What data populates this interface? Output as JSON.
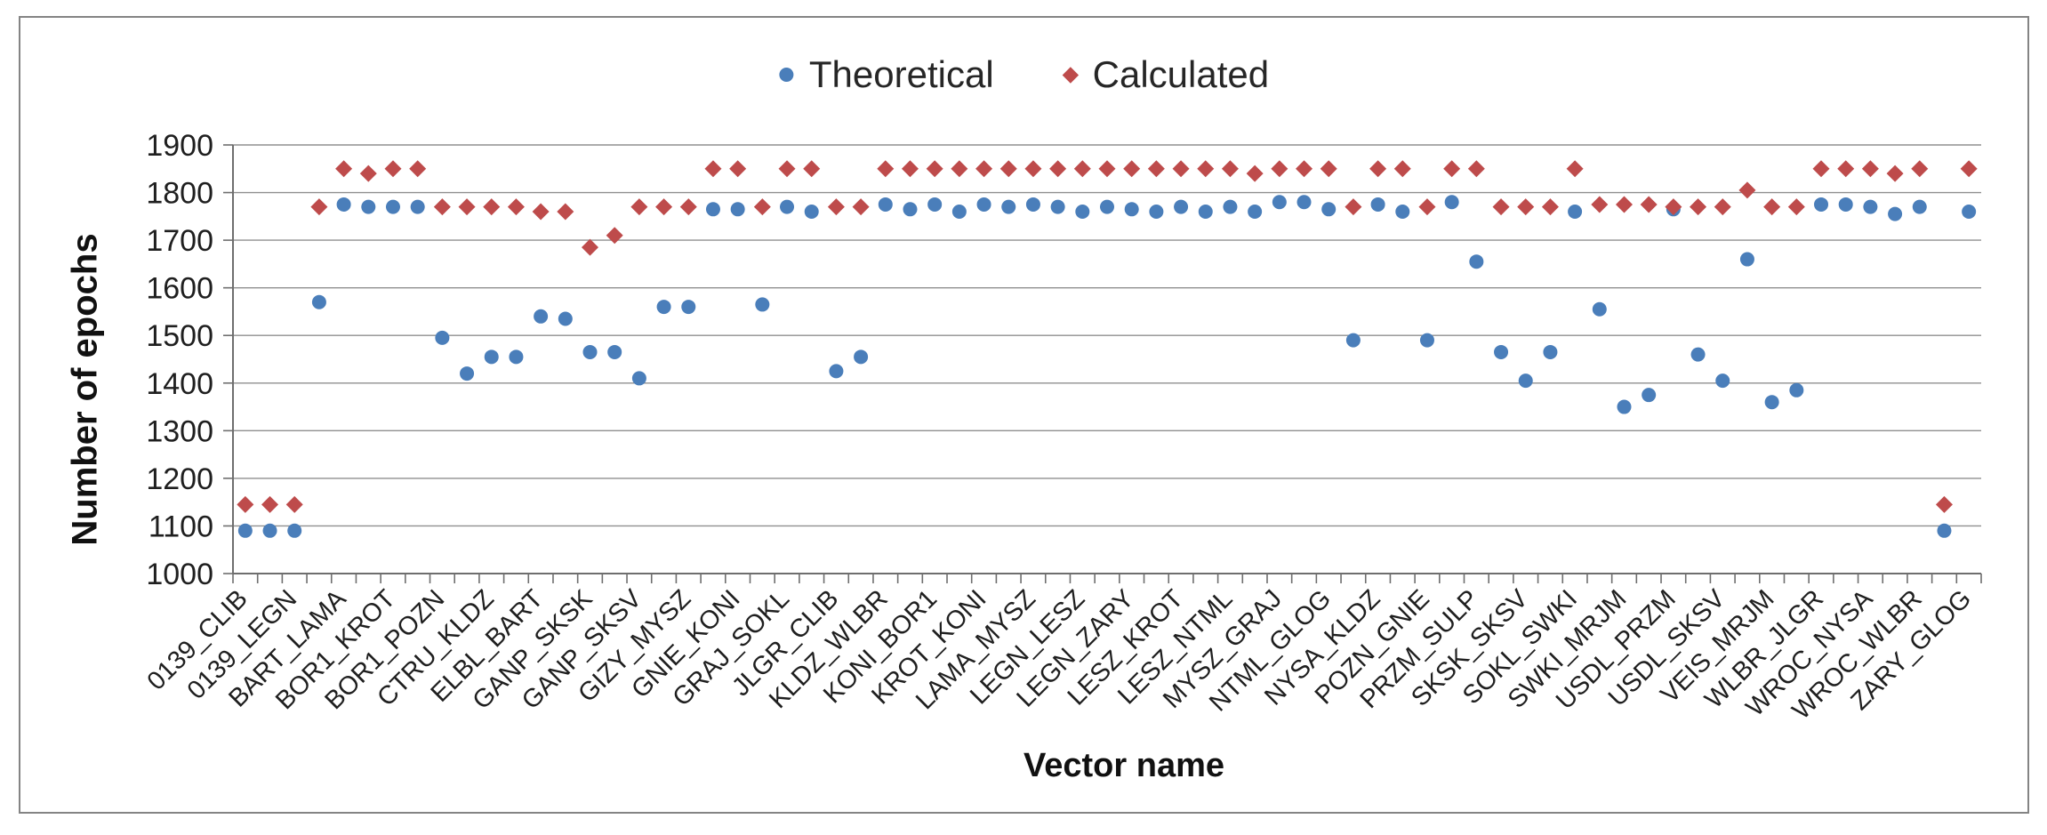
{
  "chart_data": {
    "type": "scatter",
    "title": "",
    "x_axis_title": "Vector name",
    "y_axis_title": "Number of epochs",
    "ylim": [
      1000,
      1900
    ],
    "ytick_step": 100,
    "ytick_labels": [
      "1000",
      "1100",
      "1200",
      "1300",
      "1400",
      "1500",
      "1600",
      "1700",
      "1800",
      "1900"
    ],
    "grid": true,
    "legend_position": "top-center",
    "label_interval": 2,
    "categories": [
      "0139_CLIB",
      "",
      "0139_LEGN",
      "",
      "BART_LAMA",
      "",
      "BOR1_KROT",
      "",
      "BOR1_POZN",
      "",
      "CTRU_KLDZ",
      "",
      "ELBL_BART",
      "",
      "GANP_SKSK",
      "",
      "GANP_SKSV",
      "",
      "GIZY_MYSZ",
      "",
      "GNIE_KONI",
      "",
      "GRAJ_SOKL",
      "",
      "JLGR_CLIB",
      "",
      "KLDZ_WLBR",
      "",
      "KONI_BOR1",
      "",
      "KROT_KONI",
      "",
      "LAMA_MYSZ",
      "",
      "LEGN_LESZ",
      "",
      "LEGN_ZARY",
      "",
      "LESZ_KROT",
      "",
      "LESZ_NTML",
      "",
      "MYSZ_GRAJ",
      "",
      "NTML_GLOG",
      "",
      "NYSA_KLDZ",
      "",
      "POZN_GNIE",
      "",
      "PRZM_SULP",
      "",
      "SKSK_SKSV",
      "",
      "SOKL_SWKI",
      "",
      "SWKI_MRJM",
      "",
      "USDL_PRZM",
      "",
      "USDL_SKSV",
      "",
      "VEIS_MRJM",
      "",
      "WLBR_JLGR",
      "",
      "WROC_NYSA",
      "",
      "WROC_WLBR",
      "",
      "ZARY_GLOG"
    ],
    "series": [
      {
        "name": "Theoretical",
        "marker": "circle",
        "color": "#4A7EBA",
        "values": [
          1090,
          1090,
          1090,
          1570,
          1775,
          1770,
          1770,
          1770,
          1495,
          1420,
          1455,
          1455,
          1540,
          1535,
          1465,
          1465,
          1410,
          1560,
          1560,
          1765,
          1765,
          1565,
          1770,
          1760,
          1425,
          1455,
          1775,
          1765,
          1775,
          1760,
          1775,
          1770,
          1775,
          1770,
          1760,
          1770,
          1765,
          1760,
          1770,
          1760,
          1770,
          1760,
          1780,
          1780,
          1765,
          1490,
          1775,
          1760,
          1490,
          1780,
          1655,
          1465,
          1405,
          1465,
          1760,
          1555,
          1350,
          1375,
          1765,
          1460,
          1405,
          1660,
          1360,
          1385,
          1775,
          1775,
          1770,
          1755,
          1770,
          1090,
          1760
        ]
      },
      {
        "name": "Calculated",
        "marker": "diamond",
        "color": "#BE4B4B",
        "values": [
          1145,
          1145,
          1145,
          1770,
          1850,
          1840,
          1850,
          1850,
          1770,
          1770,
          1770,
          1770,
          1760,
          1760,
          1685,
          1710,
          1770,
          1770,
          1770,
          1850,
          1850,
          1770,
          1850,
          1850,
          1770,
          1770,
          1850,
          1850,
          1850,
          1850,
          1850,
          1850,
          1850,
          1850,
          1850,
          1850,
          1850,
          1850,
          1850,
          1850,
          1850,
          1840,
          1850,
          1850,
          1850,
          1770,
          1850,
          1850,
          1770,
          1850,
          1850,
          1770,
          1770,
          1770,
          1850,
          1775,
          1775,
          1775,
          1770,
          1770,
          1770,
          1805,
          1770,
          1770,
          1850,
          1850,
          1850,
          1840,
          1850,
          1145,
          1850
        ]
      }
    ]
  },
  "colors": {
    "frame_border": "#848484",
    "gridline": "#8f8f8f",
    "axis": "#6e6e6e",
    "text": "#1f1f1f",
    "background": "#ffffff"
  }
}
